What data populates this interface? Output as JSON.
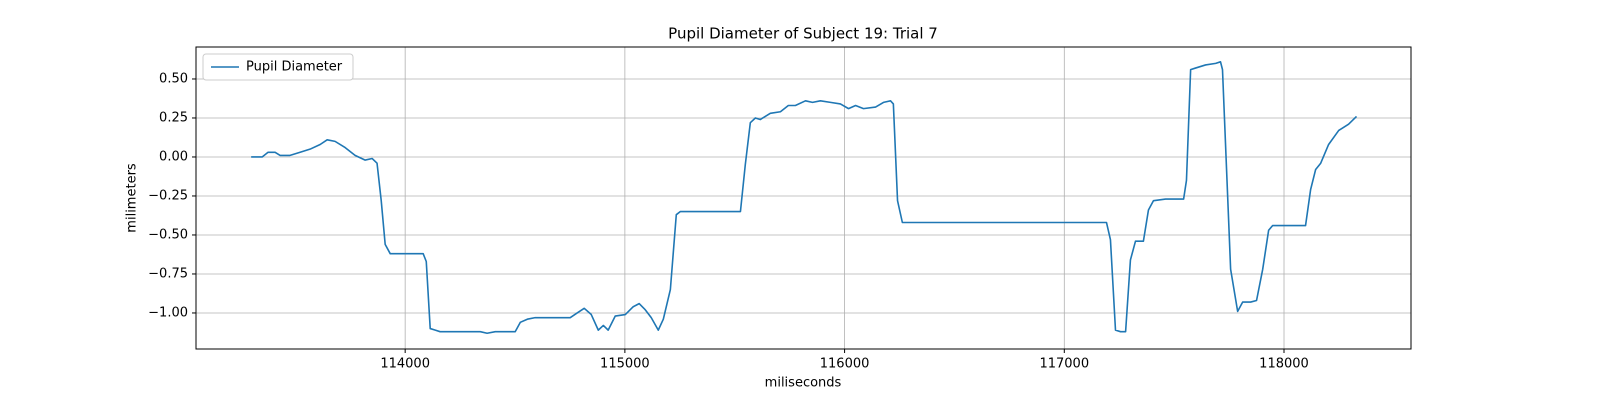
{
  "chart_data": {
    "type": "line",
    "title": "Pupil Diameter of Subject 19: Trial 7",
    "xlabel": "miliseconds",
    "ylabel": "milimeters",
    "x": [
      113299,
      113349,
      113376,
      113408,
      113431,
      113476,
      113522,
      113567,
      113613,
      113645,
      113681,
      113727,
      113772,
      113818,
      113850,
      113872,
      113891,
      113909,
      113932,
      113977,
      114082,
      114096,
      114114,
      114137,
      114159,
      114342,
      114373,
      114410,
      114501,
      114524,
      114556,
      114592,
      114751,
      114783,
      114815,
      114847,
      114879,
      114902,
      114924,
      114956,
      115002,
      115038,
      115065,
      115093,
      115120,
      115152,
      115175,
      115207,
      115234,
      115252,
      115298,
      115526,
      115548,
      115571,
      115594,
      115616,
      115662,
      115708,
      115744,
      115776,
      115822,
      115854,
      115890,
      115936,
      115981,
      116018,
      116050,
      116086,
      116141,
      116177,
      116209,
      116222,
      116241,
      116263,
      116482,
      117192,
      117210,
      117233,
      117256,
      117279,
      117301,
      117324,
      117360,
      117383,
      117406,
      117461,
      117543,
      117556,
      117575,
      117597,
      117643,
      117689,
      117711,
      117720,
      117757,
      117789,
      117812,
      117848,
      117875,
      117903,
      117930,
      117948,
      118098,
      118121,
      118144,
      118167,
      118203,
      118249,
      118294,
      118330
    ],
    "series": [
      {
        "name": "Pupil Diameter",
        "color": "#1f77b4",
        "values": [
          0.0,
          0.0,
          0.03,
          0.03,
          0.01,
          0.01,
          0.03,
          0.05,
          0.08,
          0.11,
          0.1,
          0.06,
          0.01,
          -0.02,
          -0.01,
          -0.04,
          -0.28,
          -0.56,
          -0.62,
          -0.62,
          -0.62,
          -0.67,
          -1.1,
          -1.11,
          -1.12,
          -1.12,
          -1.13,
          -1.12,
          -1.12,
          -1.06,
          -1.04,
          -1.03,
          -1.03,
          -1.0,
          -0.97,
          -1.01,
          -1.11,
          -1.08,
          -1.11,
          -1.02,
          -1.01,
          -0.96,
          -0.94,
          -0.98,
          -1.03,
          -1.11,
          -1.04,
          -0.85,
          -0.37,
          -0.35,
          -0.35,
          -0.35,
          -0.05,
          0.22,
          0.25,
          0.24,
          0.28,
          0.29,
          0.33,
          0.33,
          0.36,
          0.35,
          0.36,
          0.35,
          0.34,
          0.31,
          0.33,
          0.31,
          0.32,
          0.35,
          0.36,
          0.34,
          -0.28,
          -0.42,
          -0.42,
          -0.42,
          -0.53,
          -1.11,
          -1.12,
          -1.12,
          -0.66,
          -0.54,
          -0.54,
          -0.34,
          -0.28,
          -0.27,
          -0.27,
          -0.15,
          0.56,
          0.57,
          0.59,
          0.6,
          0.61,
          0.56,
          -0.72,
          -0.99,
          -0.93,
          -0.93,
          -0.92,
          -0.72,
          -0.47,
          -0.44,
          -0.44,
          -0.21,
          -0.08,
          -0.04,
          0.08,
          0.17,
          0.21,
          0.26
        ]
      }
    ],
    "xlim": [
      113048,
      118578
    ],
    "xticks": [
      114000,
      115000,
      116000,
      117000,
      118000
    ],
    "ylim": [
      -1.231,
      0.705
    ],
    "yticks": [
      {
        "value": 0.5,
        "label": "0.50"
      },
      {
        "value": 0.25,
        "label": "0.25"
      },
      {
        "value": 0,
        "label": "0.00"
      },
      {
        "value": -0.25,
        "label": "−0.25"
      },
      {
        "value": -0.5,
        "label": "−0.50"
      },
      {
        "value": -0.75,
        "label": "−0.75"
      },
      {
        "value": -1,
        "label": "−1.00"
      }
    ],
    "grid": true,
    "legend": "upper left"
  }
}
